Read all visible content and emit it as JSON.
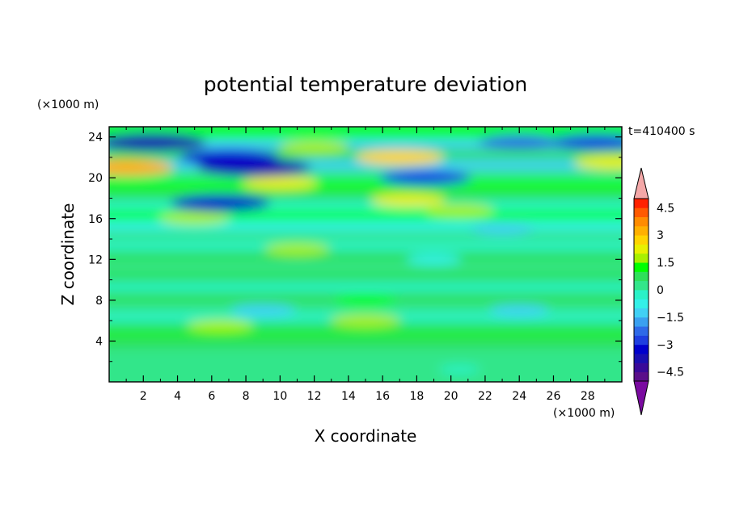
{
  "chart_data": {
    "type": "heatmap",
    "title": "potential temperature deviation",
    "xlabel": "X coordinate",
    "ylabel": "Z coordinate",
    "x_unit_label": "(×1000 m)",
    "y_unit_label": "(×1000 m)",
    "time_label": "t=410400 s",
    "xlim": [
      0,
      30
    ],
    "ylim": [
      0,
      25
    ],
    "x_ticks": [
      2,
      4,
      6,
      8,
      10,
      12,
      14,
      16,
      18,
      20,
      22,
      24,
      26,
      28
    ],
    "y_ticks": [
      4,
      8,
      12,
      16,
      20,
      24
    ],
    "grid": false,
    "colorbar": {
      "placement": "right",
      "extend": "both",
      "levels": [
        -5,
        -4.5,
        -4,
        -3.5,
        -3,
        -2.5,
        -2,
        -1.5,
        -1,
        -0.5,
        0,
        0.5,
        1,
        1.5,
        2,
        2.5,
        3,
        3.5,
        4,
        4.5,
        5
      ],
      "tick_labels": [
        "4.5",
        "3",
        "1.5",
        "0",
        "−1.5",
        "−3",
        "−4.5"
      ],
      "tick_values": [
        4.5,
        3,
        1.5,
        0,
        -1.5,
        -3,
        -4.5
      ],
      "colors": [
        "#5b0f8a",
        "#3a0a99",
        "#1a0fb0",
        "#0000cc",
        "#1f3fe0",
        "#2f6ae8",
        "#3aa0f0",
        "#40d0f5",
        "#33f0e8",
        "#2af2c8",
        "#33e68a",
        "#2ee05a",
        "#00ff00",
        "#a8f000",
        "#e8f000",
        "#ffd400",
        "#ffb000",
        "#ff8c00",
        "#ff5a00",
        "#ff2200"
      ],
      "under_color": "#7a0aa0",
      "over_color": "#f4a8a8"
    },
    "bands": [
      {
        "z": 1.0,
        "value": 0.3
      },
      {
        "z": 2.5,
        "value": 0.4
      },
      {
        "z": 4.0,
        "value": 0.5
      },
      {
        "z": 5.2,
        "value": 1.1
      },
      {
        "z": 5.6,
        "value": 0.6
      },
      {
        "z": 6.5,
        "value": -0.2
      },
      {
        "z": 7.5,
        "value": 0.2
      },
      {
        "z": 8.5,
        "value": 0.9
      },
      {
        "z": 9.5,
        "value": -0.4
      },
      {
        "z": 10.5,
        "value": 0.6
      },
      {
        "z": 11.5,
        "value": 0.2
      },
      {
        "z": 12.5,
        "value": 0.9
      },
      {
        "z": 13.5,
        "value": -0.5
      },
      {
        "z": 14.5,
        "value": 0.4
      },
      {
        "z": 15.5,
        "value": -0.8
      },
      {
        "z": 16.5,
        "value": 1.1
      },
      {
        "z": 17.5,
        "value": -0.3
      },
      {
        "z": 18.5,
        "value": 0.5
      },
      {
        "z": 19.5,
        "value": 1.3
      },
      {
        "z": 20.5,
        "value": 0.2
      },
      {
        "z": 21.5,
        "value": -1.4
      },
      {
        "z": 22.5,
        "value": 0.8
      },
      {
        "z": 23.5,
        "value": -1.2
      },
      {
        "z": 24.5,
        "value": 1.2
      }
    ],
    "features": [
      {
        "x": 1.0,
        "z": 21.0,
        "value": 3.0
      },
      {
        "x": 2.5,
        "z": 23.5,
        "value": -3.8
      },
      {
        "x": 8.5,
        "z": 21.0,
        "value": -4.0
      },
      {
        "x": 7.0,
        "z": 22.0,
        "value": -3.3
      },
      {
        "x": 6.5,
        "z": 17.5,
        "value": -3.3
      },
      {
        "x": 5.0,
        "z": 16.0,
        "value": 1.8
      },
      {
        "x": 10.0,
        "z": 19.5,
        "value": 2.0
      },
      {
        "x": 12.0,
        "z": 23.0,
        "value": 1.8
      },
      {
        "x": 17.0,
        "z": 22.0,
        "value": 2.7
      },
      {
        "x": 18.5,
        "z": 20.0,
        "value": -2.9
      },
      {
        "x": 17.5,
        "z": 17.8,
        "value": 2.0
      },
      {
        "x": 20.5,
        "z": 16.8,
        "value": 1.7
      },
      {
        "x": 24.0,
        "z": 23.5,
        "value": -2.4
      },
      {
        "x": 28.5,
        "z": 23.5,
        "value": -3.0
      },
      {
        "x": 29.5,
        "z": 21.5,
        "value": 2.2
      },
      {
        "x": 11.0,
        "z": 13.0,
        "value": 1.5
      },
      {
        "x": 19.0,
        "z": 12.0,
        "value": -1.0
      },
      {
        "x": 23.0,
        "z": 15.0,
        "value": -1.4
      },
      {
        "x": 9.0,
        "z": 7.0,
        "value": -1.5
      },
      {
        "x": 24.0,
        "z": 7.0,
        "value": -1.2
      },
      {
        "x": 15.0,
        "z": 8.0,
        "value": 1.4
      },
      {
        "x": 6.5,
        "z": 5.5,
        "value": 1.6
      },
      {
        "x": 15.0,
        "z": 6.0,
        "value": 1.8
      },
      {
        "x": 20.5,
        "z": 1.2,
        "value": -0.3
      }
    ]
  }
}
